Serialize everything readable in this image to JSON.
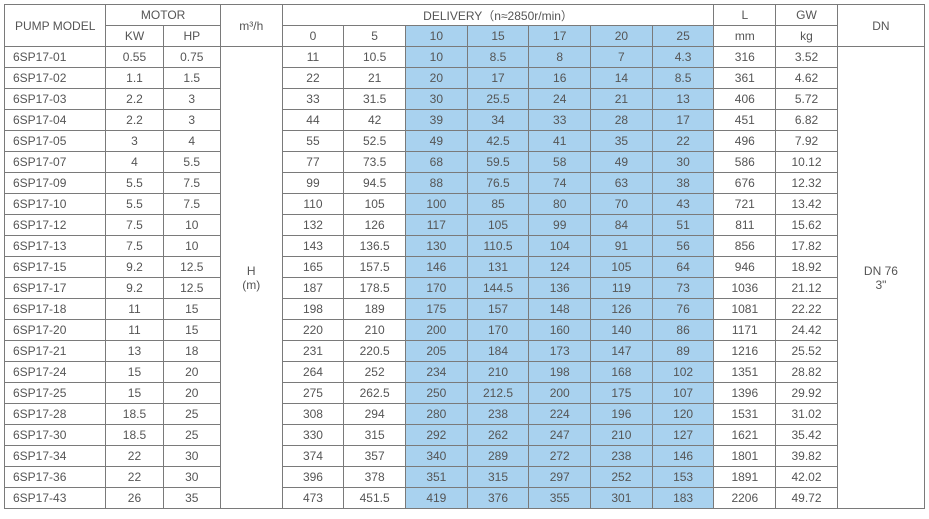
{
  "header": {
    "pump_model": "PUMP MODEL",
    "motor": "MOTOR",
    "kw": "KW",
    "hp": "HP",
    "m3h": "m³/h",
    "delivery": "DELIVERY（n≈2850r/min）",
    "flow_cols": [
      "0",
      "5",
      "10",
      "15",
      "17",
      "20",
      "25"
    ],
    "L": "L",
    "L_unit": "mm",
    "GW": "GW",
    "GW_unit": "kg",
    "DN": "DN",
    "H": "H",
    "H_unit": "(m)",
    "DN_value_1": "DN 76",
    "DN_value_2": "3\""
  },
  "colors": {
    "highlight": "#a9d2ef",
    "border": "#7a7a7a",
    "text": "#555555",
    "bg": "#ffffff"
  },
  "highlight_flow_indexes": [
    2,
    3,
    4,
    5,
    6
  ],
  "rows": [
    {
      "model": "6SP17-01",
      "kw": "0.55",
      "hp": "0.75",
      "d": [
        "11",
        "10.5",
        "10",
        "8.5",
        "8",
        "7",
        "4.3"
      ],
      "l": "316",
      "gw": "3.52"
    },
    {
      "model": "6SP17-02",
      "kw": "1.1",
      "hp": "1.5",
      "d": [
        "22",
        "21",
        "20",
        "17",
        "16",
        "14",
        "8.5"
      ],
      "l": "361",
      "gw": "4.62"
    },
    {
      "model": "6SP17-03",
      "kw": "2.2",
      "hp": "3",
      "d": [
        "33",
        "31.5",
        "30",
        "25.5",
        "24",
        "21",
        "13"
      ],
      "l": "406",
      "gw": "5.72"
    },
    {
      "model": "6SP17-04",
      "kw": "2.2",
      "hp": "3",
      "d": [
        "44",
        "42",
        "39",
        "34",
        "33",
        "28",
        "17"
      ],
      "l": "451",
      "gw": "6.82"
    },
    {
      "model": "6SP17-05",
      "kw": "3",
      "hp": "4",
      "d": [
        "55",
        "52.5",
        "49",
        "42.5",
        "41",
        "35",
        "22"
      ],
      "l": "496",
      "gw": "7.92"
    },
    {
      "model": "6SP17-07",
      "kw": "4",
      "hp": "5.5",
      "d": [
        "77",
        "73.5",
        "68",
        "59.5",
        "58",
        "49",
        "30"
      ],
      "l": "586",
      "gw": "10.12"
    },
    {
      "model": "6SP17-09",
      "kw": "5.5",
      "hp": "7.5",
      "d": [
        "99",
        "94.5",
        "88",
        "76.5",
        "74",
        "63",
        "38"
      ],
      "l": "676",
      "gw": "12.32"
    },
    {
      "model": "6SP17-10",
      "kw": "5.5",
      "hp": "7.5",
      "d": [
        "110",
        "105",
        "100",
        "85",
        "80",
        "70",
        "43"
      ],
      "l": "721",
      "gw": "13.42"
    },
    {
      "model": "6SP17-12",
      "kw": "7.5",
      "hp": "10",
      "d": [
        "132",
        "126",
        "117",
        "105",
        "99",
        "84",
        "51"
      ],
      "l": "811",
      "gw": "15.62"
    },
    {
      "model": "6SP17-13",
      "kw": "7.5",
      "hp": "10",
      "d": [
        "143",
        "136.5",
        "130",
        "110.5",
        "104",
        "91",
        "56"
      ],
      "l": "856",
      "gw": "17.82"
    },
    {
      "model": "6SP17-15",
      "kw": "9.2",
      "hp": "12.5",
      "d": [
        "165",
        "157.5",
        "146",
        "131",
        "124",
        "105",
        "64"
      ],
      "l": "946",
      "gw": "18.92"
    },
    {
      "model": "6SP17-17",
      "kw": "9.2",
      "hp": "12.5",
      "d": [
        "187",
        "178.5",
        "170",
        "144.5",
        "136",
        "119",
        "73"
      ],
      "l": "1036",
      "gw": "21.12"
    },
    {
      "model": "6SP17-18",
      "kw": "11",
      "hp": "15",
      "d": [
        "198",
        "189",
        "175",
        "157",
        "148",
        "126",
        "76"
      ],
      "l": "1081",
      "gw": "22.22"
    },
    {
      "model": "6SP17-20",
      "kw": "11",
      "hp": "15",
      "d": [
        "220",
        "210",
        "200",
        "170",
        "160",
        "140",
        "86"
      ],
      "l": "1171",
      "gw": "24.42"
    },
    {
      "model": "6SP17-21",
      "kw": "13",
      "hp": "18",
      "d": [
        "231",
        "220.5",
        "205",
        "184",
        "173",
        "147",
        "89"
      ],
      "l": "1216",
      "gw": "25.52"
    },
    {
      "model": "6SP17-24",
      "kw": "15",
      "hp": "20",
      "d": [
        "264",
        "252",
        "234",
        "210",
        "198",
        "168",
        "102"
      ],
      "l": "1351",
      "gw": "28.82"
    },
    {
      "model": "6SP17-25",
      "kw": "15",
      "hp": "20",
      "d": [
        "275",
        "262.5",
        "250",
        "212.5",
        "200",
        "175",
        "107"
      ],
      "l": "1396",
      "gw": "29.92"
    },
    {
      "model": "6SP17-28",
      "kw": "18.5",
      "hp": "25",
      "d": [
        "308",
        "294",
        "280",
        "238",
        "224",
        "196",
        "120"
      ],
      "l": "1531",
      "gw": "31.02"
    },
    {
      "model": "6SP17-30",
      "kw": "18.5",
      "hp": "25",
      "d": [
        "330",
        "315",
        "292",
        "262",
        "247",
        "210",
        "127"
      ],
      "l": "1621",
      "gw": "35.42"
    },
    {
      "model": "6SP17-34",
      "kw": "22",
      "hp": "30",
      "d": [
        "374",
        "357",
        "340",
        "289",
        "272",
        "238",
        "146"
      ],
      "l": "1801",
      "gw": "39.82"
    },
    {
      "model": "6SP17-36",
      "kw": "22",
      "hp": "30",
      "d": [
        "396",
        "378",
        "351",
        "315",
        "297",
        "252",
        "153"
      ],
      "l": "1891",
      "gw": "42.02"
    },
    {
      "model": "6SP17-43",
      "kw": "26",
      "hp": "35",
      "d": [
        "473",
        "451.5",
        "419",
        "376",
        "355",
        "301",
        "183"
      ],
      "l": "2206",
      "gw": "49.72"
    }
  ]
}
